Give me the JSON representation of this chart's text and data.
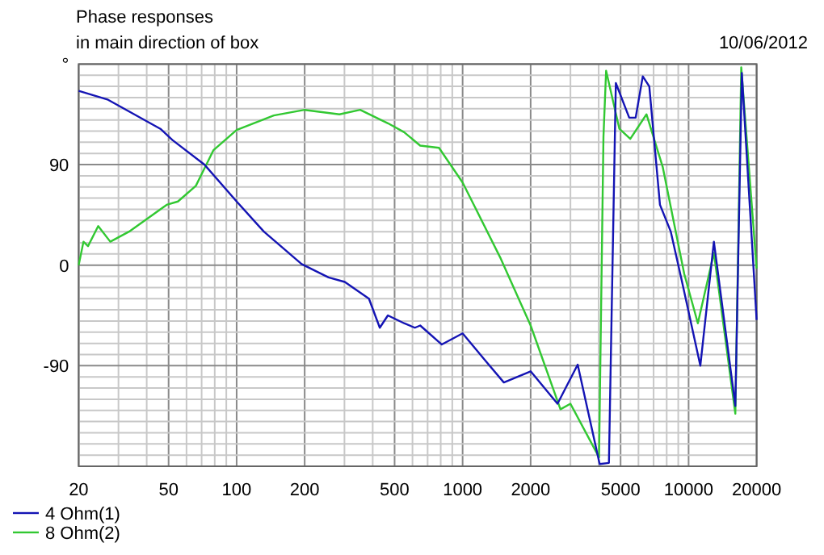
{
  "chart_data": {
    "type": "line",
    "title": "Phase responses",
    "subtitle": "in main direction of box",
    "annotations": [
      "10/06/2012"
    ],
    "log": "x",
    "grid": true,
    "legend": "bottom left",
    "line_style": "solid",
    "marker": "none",
    "xlim": [
      20,
      20000
    ],
    "ylim": [
      -180,
      180
    ],
    "xticks": [
      20,
      {
        "value": 30,
        "label": null
      },
      {
        "value": 40,
        "label": null
      },
      50,
      {
        "value": 60,
        "label": null
      },
      {
        "value": 70,
        "label": null
      },
      {
        "value": 80,
        "label": null
      },
      {
        "value": 90,
        "label": null
      },
      100,
      200,
      {
        "value": 300,
        "label": null
      },
      {
        "value": 400,
        "label": null
      },
      500,
      {
        "value": 600,
        "label": null
      },
      {
        "value": 700,
        "label": null
      },
      {
        "value": 800,
        "label": null
      },
      {
        "value": 900,
        "label": null
      },
      1000,
      2000,
      {
        "value": 3000,
        "label": null
      },
      {
        "value": 4000,
        "label": null
      },
      5000,
      {
        "value": 6000,
        "label": null
      },
      {
        "value": 7000,
        "label": null
      },
      {
        "value": 8000,
        "label": null
      },
      {
        "value": 9000,
        "label": null
      },
      10000,
      20000
    ],
    "yticks": [
      {
        "value": -180,
        "label": null
      },
      {
        "value": -170,
        "label": null
      },
      {
        "value": -160,
        "label": null
      },
      {
        "value": -150,
        "label": null
      },
      {
        "value": -140,
        "label": null
      },
      {
        "value": -130,
        "label": null
      },
      {
        "value": -120,
        "label": null
      },
      {
        "value": -110,
        "label": null
      },
      {
        "value": -100,
        "label": null
      },
      -90,
      {
        "value": -80,
        "label": null
      },
      {
        "value": -70,
        "label": null
      },
      {
        "value": -60,
        "label": null
      },
      {
        "value": -50,
        "label": null
      },
      {
        "value": -40,
        "label": null
      },
      {
        "value": -30,
        "label": null
      },
      {
        "value": -20,
        "label": null
      },
      {
        "value": -10,
        "label": null
      },
      0,
      {
        "value": 10,
        "label": null
      },
      {
        "value": 20,
        "label": null
      },
      {
        "value": 30,
        "label": null
      },
      {
        "value": 40,
        "label": null
      },
      {
        "value": 50,
        "label": null
      },
      {
        "value": 60,
        "label": null
      },
      {
        "value": 70,
        "label": null
      },
      {
        "value": 80,
        "label": null
      },
      90,
      {
        "value": 100,
        "label": null
      },
      {
        "value": 110,
        "label": null
      },
      {
        "value": 120,
        "label": null
      },
      {
        "value": 130,
        "label": null
      },
      {
        "value": 140,
        "label": null
      },
      {
        "value": 150,
        "label": null
      },
      {
        "value": 160,
        "label": null
      },
      {
        "value": 170,
        "label": null
      },
      {
        "value": 180,
        "label": "°"
      }
    ],
    "series": [
      {
        "name": "4 Ohm(1)",
        "color": "#1414b4",
        "x": [
          20,
          27,
          46,
          52,
          72,
          100,
          132,
          194,
          255,
          301,
          385,
          430,
          467,
          551,
          615,
          649,
          809,
          1000,
          1256,
          1522,
          2000,
          2630,
          3230,
          4040,
          4440,
          4765,
          5460,
          5830,
          6270,
          6700,
          7470,
          8340,
          9310,
          11270,
          12940,
          16100,
          17200,
          20000
        ],
        "values": [
          156,
          148,
          122,
          112,
          90,
          57,
          30,
          1,
          -11,
          -15,
          -30,
          -56,
          -45,
          -52,
          -56,
          -54,
          -71,
          -61,
          -85,
          -105,
          -95,
          -124,
          -89,
          -178,
          -177,
          163,
          132,
          132,
          169,
          160,
          54,
          30,
          -13,
          -90,
          21,
          -126,
          172,
          -49
        ]
      },
      {
        "name": "8 Ohm(2)",
        "color": "#32c832",
        "x": [
          20,
          21,
          22,
          24.4,
          27.6,
          33.4,
          49,
          55,
          66,
          79,
          100,
          146,
          200,
          285,
          352,
          467,
          551,
          649,
          786,
          1000,
          1474,
          2000,
          2710,
          3000,
          4015,
          4200,
          4315,
          4940,
          5520,
          6510,
          7680,
          9570,
          10990,
          12940,
          16100,
          17100,
          20000
        ],
        "values": [
          0,
          21,
          17,
          35,
          21,
          30,
          54,
          57,
          71,
          103,
          121,
          134,
          139,
          135,
          139,
          127,
          119,
          107,
          105,
          74,
          6,
          -54,
          -129,
          -124,
          -172,
          115,
          174,
          122,
          113,
          135,
          88,
          -8,
          -52,
          11,
          -133,
          177,
          -3
        ]
      }
    ]
  }
}
